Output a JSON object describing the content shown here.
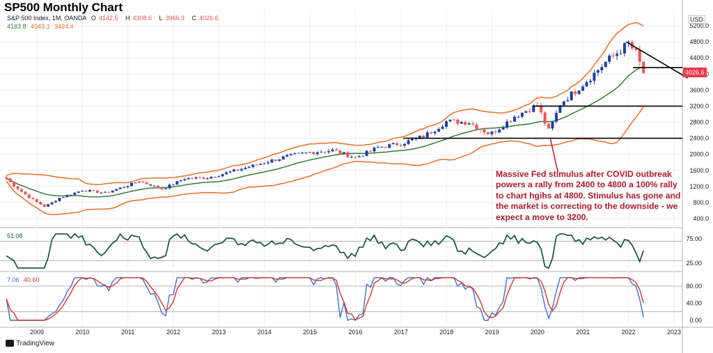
{
  "title": "SP500 Monthly Chart",
  "legend": {
    "symbol": "S&P 500 Index, 1M, OANDA",
    "open_label": "O",
    "open": "4142.5",
    "high_label": "H",
    "high": "4308.6",
    "low_label": "L",
    "low": "3966.3",
    "close_label": "C",
    "close": "4026.6",
    "bb_mid": "4183.8",
    "bb_upper": "4943.1",
    "bb_lower": "3424.4"
  },
  "currency": "USD",
  "last_price": "4026.6",
  "annotation": "Massive Fed stimulus after COVID outbreak powers a rally from 2400 to 4800 a 100% rally to chart hgihs at 4800. Stimulus has gone and the market is correcting to the downside - we expect a move to 3200.",
  "rsi_value": "51.08",
  "stoch_k": "7.06",
  "stoch_d": "40.60",
  "brand": "TradingView",
  "colors": {
    "up": "#1f3fa6",
    "down": "#ef5350",
    "bb_band": "#ef6c1a",
    "bb_mid": "#2e7d32",
    "rsi": "#1b5e3b",
    "stoch_k": "#3d6fc4",
    "stoch_d": "#d2342f",
    "annotation": "#b2182b"
  },
  "chart_data": [
    {
      "type": "candlestick",
      "title": "SP500 Monthly Chart",
      "x_ticks": [
        "2009",
        "2010",
        "2011",
        "2012",
        "2013",
        "2014",
        "2015",
        "2016",
        "2017",
        "2018",
        "2019",
        "2020",
        "2021",
        "2022",
        "2023"
      ],
      "y_ticks": [
        400,
        800,
        1200,
        1600,
        2000,
        2400,
        2800,
        3200,
        3600,
        4000,
        4400,
        4800,
        5200
      ],
      "ylim": [
        200,
        5400
      ],
      "key_closes": [
        {
          "t": 2008.33,
          "v": 1400
        },
        {
          "t": 2008.75,
          "v": 1000
        },
        {
          "t": 2009.17,
          "v": 700
        },
        {
          "t": 2009.5,
          "v": 920
        },
        {
          "t": 2010.0,
          "v": 1110
        },
        {
          "t": 2010.5,
          "v": 1040
        },
        {
          "t": 2011.25,
          "v": 1340
        },
        {
          "t": 2011.75,
          "v": 1140
        },
        {
          "t": 2012.25,
          "v": 1400
        },
        {
          "t": 2012.75,
          "v": 1420
        },
        {
          "t": 2013.5,
          "v": 1640
        },
        {
          "t": 2014.0,
          "v": 1800
        },
        {
          "t": 2014.5,
          "v": 1950
        },
        {
          "t": 2015.0,
          "v": 2050
        },
        {
          "t": 2015.5,
          "v": 2100
        },
        {
          "t": 2016.0,
          "v": 1920
        },
        {
          "t": 2016.5,
          "v": 2170
        },
        {
          "t": 2017.0,
          "v": 2270
        },
        {
          "t": 2017.5,
          "v": 2450
        },
        {
          "t": 2018.0,
          "v": 2820
        },
        {
          "t": 2018.5,
          "v": 2800
        },
        {
          "t": 2018.96,
          "v": 2500
        },
        {
          "t": 2019.5,
          "v": 2950
        },
        {
          "t": 2020.0,
          "v": 3230
        },
        {
          "t": 2020.25,
          "v": 2580
        },
        {
          "t": 2020.5,
          "v": 3270
        },
        {
          "t": 2021.0,
          "v": 3750
        },
        {
          "t": 2021.5,
          "v": 4300
        },
        {
          "t": 2022.0,
          "v": 4760
        },
        {
          "t": 2022.17,
          "v": 4500
        },
        {
          "t": 2022.33,
          "v": 4026.6
        }
      ],
      "horizontal_levels": [
        2400,
        3200,
        4160
      ],
      "trendline": [
        {
          "t": 2021.95,
          "v": 4800
        },
        {
          "t": 2023.3,
          "v": 3900
        }
      ],
      "annotation_arrow_from": {
        "t": 2020.45,
        "v": 1550
      },
      "annotation_arrow_to": {
        "t": 2020.28,
        "v": 2400
      }
    },
    {
      "type": "line",
      "name": "RSI",
      "value": 51.08,
      "y_ticks": [
        25.0,
        75.0
      ],
      "ylim": [
        10,
        90
      ],
      "levels": [
        30,
        70
      ]
    },
    {
      "type": "line",
      "name": "Stochastic",
      "k": 7.06,
      "d": 40.6,
      "y_ticks": [
        0.0,
        40.0,
        80.0
      ],
      "ylim": [
        -5,
        105
      ],
      "levels": [
        20,
        80
      ]
    }
  ]
}
